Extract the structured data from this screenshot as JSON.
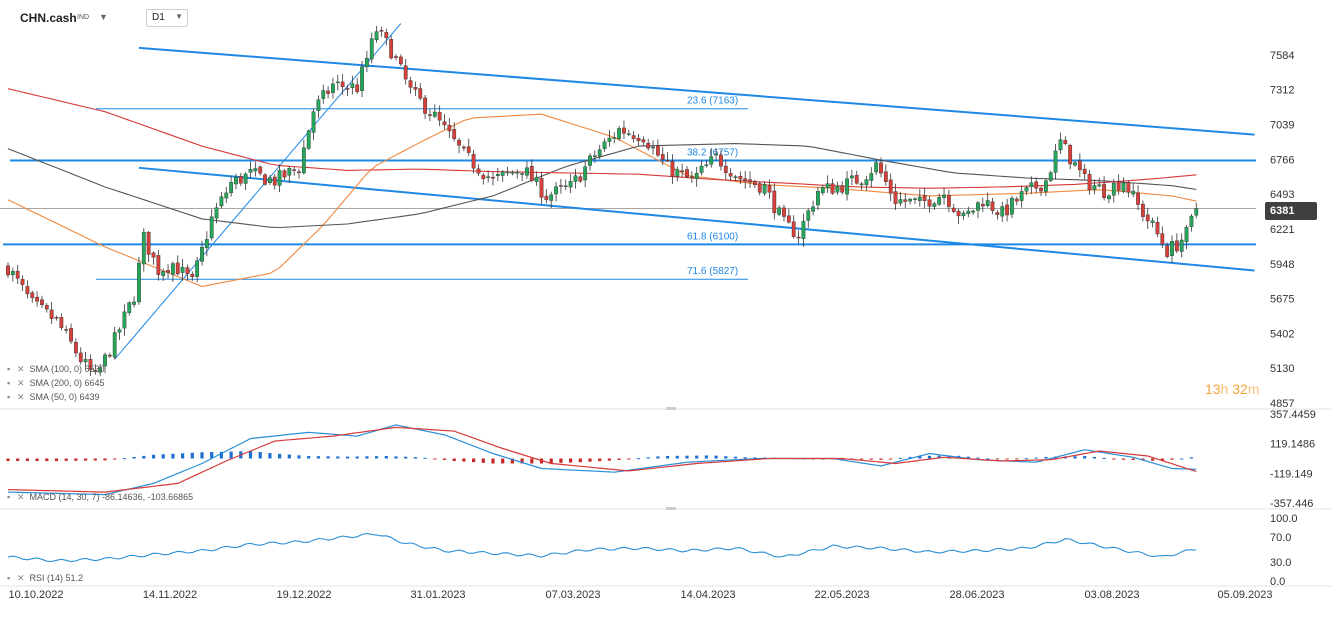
{
  "header": {
    "symbol": "CHN.cash",
    "symbol_tag": "IND",
    "symbol_caret": "▼",
    "timeframe": "D1",
    "timeframe_caret": "▼"
  },
  "countdown": {
    "hours": "13",
    "h": "h",
    "minutes": "32",
    "m": "m"
  },
  "last_price_badge": "6381",
  "legends": {
    "sma100": "SMA  (100, 0) 6530",
    "sma200": "SMA  (200, 0) 6645",
    "sma50": "SMA  (50, 0) 6439",
    "macd": "MACD  (14, 30, 7)  -86.14636,  -103.66865",
    "rsi": "RSI  (14)  51.2"
  },
  "chart_data": [
    {
      "type": "candlestick",
      "panel": "price",
      "title": "",
      "x_tick_labels": [
        "10.10.2022",
        "14.11.2022",
        "19.12.2022",
        "31.01.2023",
        "07.03.2023",
        "14.04.2023",
        "22.05.2023",
        "28.06.2023",
        "03.08.2023",
        "05.09.2023"
      ],
      "y_tick_labels": [
        "7584",
        "7312",
        "7039",
        "6766",
        "6493",
        "6221",
        "5948",
        "5675",
        "5402",
        "5130",
        "4857"
      ],
      "ylim": [
        4857,
        7584
      ],
      "grid": false,
      "last_price": 6381,
      "ohlc_anchor_closes": [
        [
          0,
          5920
        ],
        [
          5,
          5630
        ],
        [
          10,
          5500
        ],
        [
          15,
          5200
        ],
        [
          18,
          5050
        ],
        [
          22,
          5350
        ],
        [
          26,
          5700
        ],
        [
          28,
          6150
        ],
        [
          31,
          5900
        ],
        [
          34,
          5950
        ],
        [
          38,
          5800
        ],
        [
          42,
          6300
        ],
        [
          46,
          6580
        ],
        [
          50,
          6650
        ],
        [
          55,
          6600
        ],
        [
          60,
          6700
        ],
        [
          63,
          7150
        ],
        [
          67,
          7350
        ],
        [
          72,
          7330
        ],
        [
          76,
          7780
        ],
        [
          79,
          7620
        ],
        [
          83,
          7300
        ],
        [
          88,
          7100
        ],
        [
          94,
          6800
        ],
        [
          100,
          6600
        ],
        [
          106,
          6700
        ],
        [
          111,
          6480
        ],
        [
          116,
          6550
        ],
        [
          121,
          6800
        ],
        [
          126,
          7000
        ],
        [
          131,
          6950
        ],
        [
          136,
          6700
        ],
        [
          141,
          6600
        ],
        [
          146,
          6780
        ],
        [
          151,
          6620
        ],
        [
          156,
          6550
        ],
        [
          160,
          6260
        ],
        [
          163,
          6180
        ],
        [
          167,
          6520
        ],
        [
          172,
          6560
        ],
        [
          176,
          6620
        ],
        [
          179,
          6720
        ],
        [
          183,
          6450
        ],
        [
          188,
          6420
        ],
        [
          193,
          6500
        ],
        [
          197,
          6300
        ],
        [
          201,
          6450
        ],
        [
          205,
          6340
        ],
        [
          209,
          6480
        ],
        [
          214,
          6600
        ],
        [
          217,
          6900
        ],
        [
          222,
          6600
        ],
        [
          226,
          6520
        ],
        [
          230,
          6600
        ],
        [
          233,
          6400
        ],
        [
          236,
          6240
        ],
        [
          239,
          6050
        ],
        [
          241,
          6100
        ],
        [
          243,
          6180
        ],
        [
          245,
          6381
        ]
      ],
      "sma": [
        {
          "name": "SMA (50)",
          "color": "#f0883e",
          "points": [
            [
              0,
              6450
            ],
            [
              20,
              6080
            ],
            [
              40,
              5770
            ],
            [
              55,
              5880
            ],
            [
              65,
              6250
            ],
            [
              75,
              6700
            ],
            [
              85,
              6900
            ],
            [
              95,
              7090
            ],
            [
              110,
              7120
            ],
            [
              125,
              6940
            ],
            [
              140,
              6640
            ],
            [
              155,
              6570
            ],
            [
              170,
              6540
            ],
            [
              190,
              6480
            ],
            [
              210,
              6500
            ],
            [
              225,
              6530
            ],
            [
              240,
              6480
            ],
            [
              245,
              6439
            ]
          ]
        },
        {
          "name": "SMA (100)",
          "color": "#555555",
          "points": [
            [
              0,
              6850
            ],
            [
              20,
              6550
            ],
            [
              40,
              6300
            ],
            [
              55,
              6230
            ],
            [
              70,
              6260
            ],
            [
              85,
              6340
            ],
            [
              100,
              6480
            ],
            [
              115,
              6710
            ],
            [
              130,
              6870
            ],
            [
              150,
              6890
            ],
            [
              165,
              6870
            ],
            [
              180,
              6760
            ],
            [
              195,
              6660
            ],
            [
              210,
              6620
            ],
            [
              225,
              6600
            ],
            [
              240,
              6560
            ],
            [
              245,
              6530
            ]
          ]
        },
        {
          "name": "SMA (200)",
          "color": "#d63a3a",
          "points": [
            [
              0,
              7320
            ],
            [
              20,
              7140
            ],
            [
              40,
              6870
            ],
            [
              55,
              6720
            ],
            [
              70,
              6680
            ],
            [
              85,
              6690
            ],
            [
              100,
              6670
            ],
            [
              115,
              6660
            ],
            [
              130,
              6650
            ],
            [
              145,
              6610
            ],
            [
              160,
              6580
            ],
            [
              175,
              6550
            ],
            [
              190,
              6540
            ],
            [
              205,
              6550
            ],
            [
              220,
              6570
            ],
            [
              235,
              6610
            ],
            [
              245,
              6645
            ]
          ]
        }
      ],
      "fibonacci": [
        {
          "label": "23.6 (7163)",
          "value": 7163
        },
        {
          "label": "38.2 (6757)",
          "value": 6757
        },
        {
          "label": "61.8 (6100)",
          "value": 6100
        },
        {
          "label": "71.6 (5827)",
          "value": 5827
        }
      ]
    },
    {
      "type": "histogram+line",
      "panel": "macd",
      "y_tick_labels": [
        "357.4459",
        "119.1486",
        "-119.149",
        "-357.446"
      ],
      "ylim": [
        -357.446,
        357.4459
      ],
      "macd_line": [
        [
          0,
          -270
        ],
        [
          20,
          -290
        ],
        [
          30,
          -200
        ],
        [
          40,
          -40
        ],
        [
          50,
          160
        ],
        [
          62,
          210
        ],
        [
          72,
          180
        ],
        [
          80,
          270
        ],
        [
          90,
          190
        ],
        [
          100,
          40
        ],
        [
          110,
          -80
        ],
        [
          125,
          -110
        ],
        [
          140,
          -30
        ],
        [
          155,
          0
        ],
        [
          170,
          0
        ],
        [
          180,
          -60
        ],
        [
          190,
          40
        ],
        [
          200,
          -10
        ],
        [
          212,
          -30
        ],
        [
          222,
          70
        ],
        [
          232,
          10
        ],
        [
          240,
          -80
        ],
        [
          245,
          -86
        ]
      ],
      "signal_line": [
        [
          0,
          -250
        ],
        [
          20,
          -270
        ],
        [
          35,
          -200
        ],
        [
          45,
          -20
        ],
        [
          55,
          140
        ],
        [
          67,
          180
        ],
        [
          80,
          250
        ],
        [
          92,
          220
        ],
        [
          102,
          80
        ],
        [
          112,
          -40
        ],
        [
          128,
          -100
        ],
        [
          142,
          -40
        ],
        [
          157,
          0
        ],
        [
          172,
          0
        ],
        [
          183,
          -40
        ],
        [
          193,
          10
        ],
        [
          205,
          -20
        ],
        [
          215,
          -10
        ],
        [
          225,
          60
        ],
        [
          235,
          20
        ],
        [
          245,
          -104
        ]
      ],
      "histogram": [
        [
          0,
          -20
        ],
        [
          10,
          -20
        ],
        [
          20,
          -15
        ],
        [
          30,
          30
        ],
        [
          40,
          50
        ],
        [
          50,
          60
        ],
        [
          55,
          40
        ],
        [
          62,
          20
        ],
        [
          70,
          15
        ],
        [
          78,
          20
        ],
        [
          85,
          10
        ],
        [
          92,
          -20
        ],
        [
          100,
          -40
        ],
        [
          110,
          -40
        ],
        [
          118,
          -30
        ],
        [
          125,
          -15
        ],
        [
          135,
          20
        ],
        [
          145,
          25
        ],
        [
          152,
          10
        ],
        [
          160,
          5
        ],
        [
          170,
          -5
        ],
        [
          180,
          -10
        ],
        [
          188,
          20
        ],
        [
          195,
          25
        ],
        [
          205,
          -10
        ],
        [
          215,
          15
        ],
        [
          222,
          20
        ],
        [
          230,
          -10
        ],
        [
          238,
          -20
        ],
        [
          245,
          15
        ]
      ]
    },
    {
      "type": "line",
      "panel": "rsi",
      "y_tick_labels": [
        "100.0",
        "70.0",
        "30.0",
        "0.0"
      ],
      "ylim": [
        0,
        100
      ],
      "values": [
        [
          0,
          38
        ],
        [
          10,
          32
        ],
        [
          20,
          35
        ],
        [
          30,
          42
        ],
        [
          40,
          48
        ],
        [
          50,
          58
        ],
        [
          60,
          62
        ],
        [
          70,
          70
        ],
        [
          76,
          75
        ],
        [
          82,
          60
        ],
        [
          90,
          48
        ],
        [
          100,
          44
        ],
        [
          110,
          40
        ],
        [
          120,
          50
        ],
        [
          130,
          52
        ],
        [
          140,
          48
        ],
        [
          150,
          52
        ],
        [
          160,
          38
        ],
        [
          170,
          55
        ],
        [
          180,
          52
        ],
        [
          190,
          46
        ],
        [
          200,
          48
        ],
        [
          210,
          52
        ],
        [
          218,
          66
        ],
        [
          225,
          56
        ],
        [
          232,
          46
        ],
        [
          238,
          38
        ],
        [
          245,
          51.2
        ]
      ]
    }
  ]
}
